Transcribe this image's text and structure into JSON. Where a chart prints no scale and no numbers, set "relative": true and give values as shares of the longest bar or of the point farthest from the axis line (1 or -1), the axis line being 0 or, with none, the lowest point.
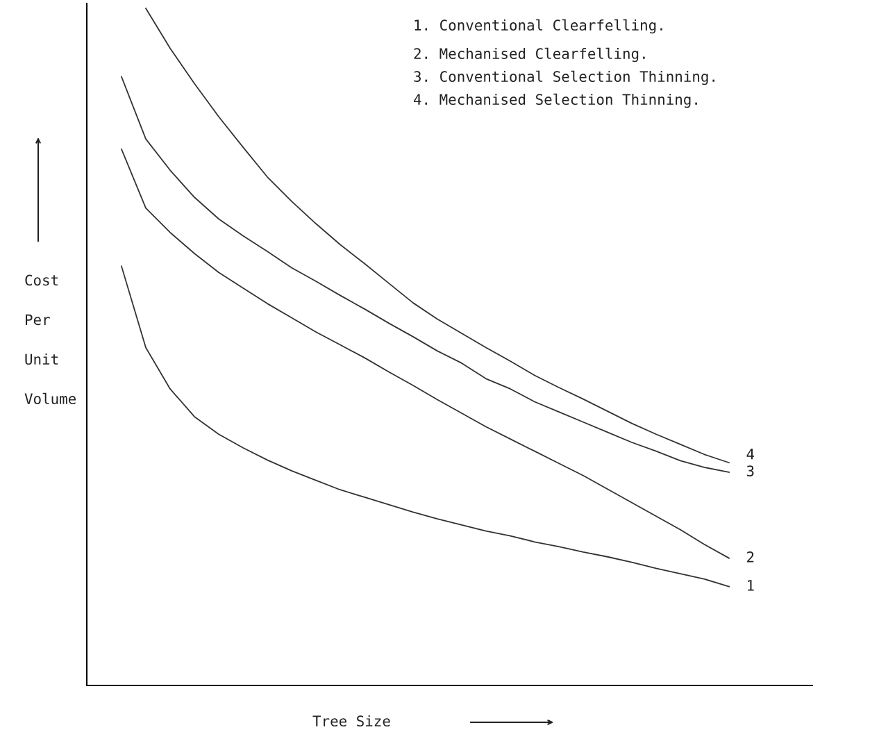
{
  "chart_data": {
    "type": "line",
    "relative": true,
    "xlabel": "Tree Size",
    "ylabel": "Cost\nPer\nUnit\nVolume",
    "legend": false,
    "marker": "none",
    "line_style": "solid",
    "categories": [
      null,
      null,
      null,
      null,
      null,
      null,
      null,
      null,
      null,
      null,
      null,
      null,
      null,
      null,
      null,
      null,
      null,
      null,
      null,
      null,
      null,
      null,
      null,
      null,
      null,
      null
    ],
    "annotations": [
      "1. Conventional Clearfelling.",
      "2. Mechanised Clearfelling.",
      "3. Conventional Selection Thinning.",
      "4. Mechanised Selection Thinning."
    ],
    "series": [
      {
        "name": "1",
        "color": "#333333",
        "values": [
          0.619,
          0.499,
          0.438,
          0.397,
          0.371,
          0.351,
          0.333,
          0.317,
          0.303,
          0.289,
          0.278,
          0.267,
          0.256,
          0.246,
          0.237,
          0.228,
          0.221,
          0.212,
          0.205,
          0.197,
          0.19,
          0.182,
          0.173,
          0.165,
          0.157,
          0.146
        ]
      },
      {
        "name": "2",
        "color": "#333333",
        "values": [
          0.792,
          0.705,
          0.669,
          0.638,
          0.61,
          0.587,
          0.564,
          0.543,
          0.522,
          0.503,
          0.484,
          0.463,
          0.443,
          0.422,
          0.402,
          0.382,
          0.364,
          0.346,
          0.328,
          0.31,
          0.29,
          0.27,
          0.25,
          0.23,
          0.208,
          0.188
        ]
      },
      {
        "name": "3",
        "color": "#333333",
        "values": [
          0.899,
          0.807,
          0.761,
          0.721,
          0.689,
          0.664,
          0.641,
          0.617,
          0.597,
          0.576,
          0.556,
          0.535,
          0.515,
          0.494,
          0.476,
          0.453,
          0.438,
          0.419,
          0.404,
          0.389,
          0.374,
          0.359,
          0.346,
          0.332,
          0.322,
          0.315
        ]
      },
      {
        "name": "4",
        "color": "#333333",
        "values": [
          null,
          1.0,
          0.941,
          0.889,
          0.84,
          0.795,
          0.751,
          0.715,
          0.682,
          0.651,
          0.623,
          0.594,
          0.565,
          0.541,
          0.52,
          0.499,
          0.479,
          0.458,
          0.44,
          0.423,
          0.405,
          0.387,
          0.371,
          0.356,
          0.341,
          0.329
        ]
      }
    ]
  }
}
